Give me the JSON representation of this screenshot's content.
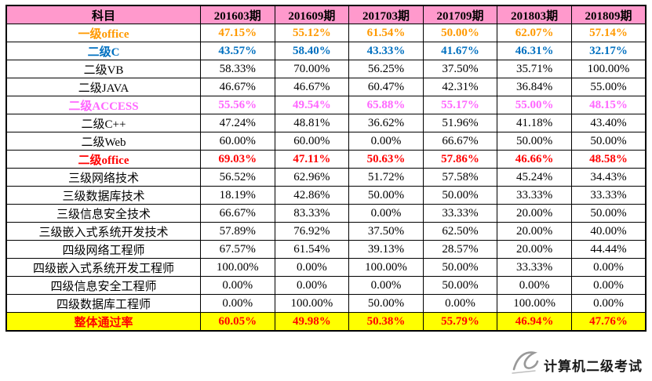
{
  "chart_data": {
    "type": "table",
    "title": "",
    "columns": [
      "科目",
      "201603期",
      "201609期",
      "201703期",
      "201709期",
      "201803期",
      "201809期"
    ],
    "rows": [
      {
        "subject": "一级office",
        "style": "orange",
        "values": [
          "47.15%",
          "55.12%",
          "61.54%",
          "50.00%",
          "62.07%",
          "57.14%"
        ]
      },
      {
        "subject": "二级C",
        "style": "blue",
        "values": [
          "43.57%",
          "58.40%",
          "43.33%",
          "41.67%",
          "46.31%",
          "32.17%"
        ]
      },
      {
        "subject": "二级VB",
        "style": "black",
        "values": [
          "58.33%",
          "70.00%",
          "56.25%",
          "37.50%",
          "35.71%",
          "100.00%"
        ]
      },
      {
        "subject": "二级JAVA",
        "style": "black",
        "values": [
          "46.67%",
          "46.67%",
          "60.47%",
          "42.31%",
          "36.84%",
          "55.00%"
        ]
      },
      {
        "subject": "二级ACCESS",
        "style": "pink",
        "values": [
          "55.56%",
          "49.54%",
          "65.88%",
          "55.17%",
          "55.00%",
          "48.15%"
        ]
      },
      {
        "subject": "二级C++",
        "style": "black",
        "values": [
          "47.24%",
          "48.81%",
          "36.62%",
          "51.96%",
          "41.18%",
          "43.40%"
        ]
      },
      {
        "subject": "二级Web",
        "style": "black",
        "values": [
          "60.00%",
          "60.00%",
          "0.00%",
          "66.67%",
          "50.00%",
          "50.00%"
        ]
      },
      {
        "subject": "二级office",
        "style": "red",
        "values": [
          "69.03%",
          "47.11%",
          "50.63%",
          "57.86%",
          "46.66%",
          "48.58%"
        ]
      },
      {
        "subject": "三级网络技术",
        "style": "black",
        "values": [
          "56.52%",
          "62.96%",
          "51.72%",
          "57.58%",
          "45.24%",
          "34.43%"
        ]
      },
      {
        "subject": "三级数据库技术",
        "style": "black",
        "values": [
          "18.19%",
          "42.86%",
          "50.00%",
          "50.00%",
          "33.33%",
          "33.33%"
        ]
      },
      {
        "subject": "三级信息安全技术",
        "style": "black",
        "values": [
          "66.67%",
          "83.33%",
          "0.00%",
          "33.33%",
          "20.00%",
          "50.00%"
        ]
      },
      {
        "subject": "三级嵌入式系统开发技术",
        "style": "black",
        "values": [
          "57.89%",
          "76.92%",
          "37.50%",
          "62.50%",
          "20.00%",
          "40.00%"
        ]
      },
      {
        "subject": "四级网络工程师",
        "style": "black",
        "values": [
          "67.57%",
          "61.54%",
          "39.13%",
          "28.57%",
          "20.00%",
          "44.44%"
        ]
      },
      {
        "subject": "四级嵌入式系统开发工程师",
        "style": "black",
        "values": [
          "100.00%",
          "0.00%",
          "100.00%",
          "50.00%",
          "33.33%",
          "0.00%"
        ]
      },
      {
        "subject": "四级信息安全工程师",
        "style": "black",
        "values": [
          "0.00%",
          "0.00%",
          "0.00%",
          "50.00%",
          "0.00%",
          "0.00%"
        ]
      },
      {
        "subject": "四级数据库工程师",
        "style": "black",
        "values": [
          "0.00%",
          "100.00%",
          "50.00%",
          "0.00%",
          "100.00%",
          "0.00%"
        ]
      },
      {
        "subject": "整体通过率",
        "style": "footer",
        "values": [
          "60.05%",
          "49.98%",
          "50.38%",
          "55.79%",
          "46.94%",
          "47.76%"
        ]
      }
    ],
    "layout": {
      "grid": true,
      "header_bg": "#ff99cc",
      "footer_bg": "#ffff00"
    }
  },
  "colors": {
    "header_bg": "#ff99cc",
    "footer_bg": "#ffff00",
    "orange_row": "#ff9900",
    "blue_row": "#0070c0",
    "pink_row": "#ff66ff",
    "red_row": "#ff0000",
    "border": "#000000"
  },
  "watermark": {
    "text": "计算机二级考试"
  }
}
